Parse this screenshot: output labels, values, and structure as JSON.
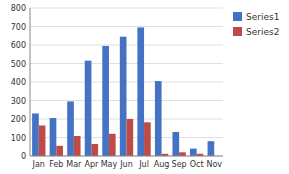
{
  "chart_data": {
    "type": "bar",
    "categories": [
      "Jan",
      "Feb",
      "Mar",
      "Apr",
      "May",
      "Jun",
      "Jul",
      "Aug",
      "Sep",
      "Oct",
      "Nov"
    ],
    "series": [
      {
        "name": "Series1",
        "color": "#4472C4",
        "values": [
          230,
          205,
          295,
          515,
          595,
          645,
          695,
          405,
          130,
          40,
          80
        ]
      },
      {
        "name": "Series2",
        "color": "#BE4B48",
        "values": [
          165,
          55,
          108,
          65,
          120,
          200,
          182,
          12,
          20,
          12,
          0
        ]
      }
    ],
    "ylim": [
      0,
      800
    ],
    "yticks": [
      0,
      100,
      200,
      300,
      400,
      500,
      600,
      700,
      800
    ],
    "grid": true,
    "legend": "right"
  }
}
